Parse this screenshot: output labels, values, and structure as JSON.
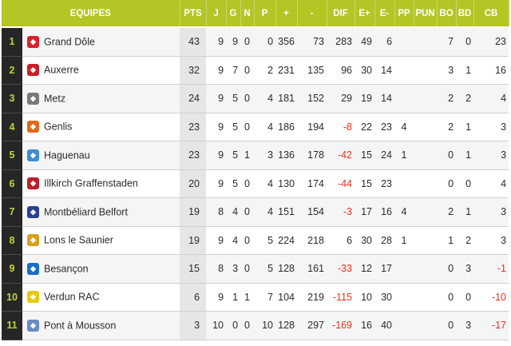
{
  "columns": {
    "equipes": "EQUIPES",
    "pts": "PTS",
    "j": "J",
    "g": "G",
    "n": "N",
    "p": "P",
    "plus": "+",
    "minus": "-",
    "dif": "DIF",
    "eplus": "E+",
    "eminus": "E-",
    "pp": "PP",
    "pun": "PUN",
    "bo": "BO",
    "bd": "BD",
    "cb": "CB"
  },
  "rows": [
    {
      "rank": "1",
      "team": "Grand Dôle",
      "logo_icon": "grand-dole-logo-icon",
      "logo_color": "#d8222a",
      "pts": "43",
      "j": "9",
      "g": "9",
      "n": "0",
      "p": "0",
      "plus": "356",
      "minus": "73",
      "dif": "283",
      "eplus": "49",
      "eminus": "6",
      "pp": "",
      "pun": "",
      "bo": "7",
      "bd": "0",
      "cb": "23"
    },
    {
      "rank": "2",
      "team": "Auxerre",
      "logo_icon": "auxerre-logo-icon",
      "logo_color": "#c8202a",
      "pts": "32",
      "j": "9",
      "g": "7",
      "n": "0",
      "p": "2",
      "plus": "231",
      "minus": "135",
      "dif": "96",
      "eplus": "30",
      "eminus": "14",
      "pp": "",
      "pun": "",
      "bo": "3",
      "bd": "1",
      "cb": "16"
    },
    {
      "rank": "3",
      "team": "Metz",
      "logo_icon": "metz-logo-icon",
      "logo_color": "#7a7a7a",
      "pts": "24",
      "j": "9",
      "g": "5",
      "n": "0",
      "p": "4",
      "plus": "181",
      "minus": "152",
      "dif": "29",
      "eplus": "19",
      "eminus": "14",
      "pp": "",
      "pun": "",
      "bo": "2",
      "bd": "2",
      "cb": "4"
    },
    {
      "rank": "4",
      "team": "Genlis",
      "logo_icon": "genlis-logo-icon",
      "logo_color": "#e06a1a",
      "pts": "23",
      "j": "9",
      "g": "5",
      "n": "0",
      "p": "4",
      "plus": "186",
      "minus": "194",
      "dif": "-8",
      "eplus": "22",
      "eminus": "23",
      "pp": "4",
      "pun": "",
      "bo": "2",
      "bd": "1",
      "cb": "3"
    },
    {
      "rank": "5",
      "team": "Haguenau",
      "logo_icon": "haguenau-logo-icon",
      "logo_color": "#3a8fd0",
      "pts": "23",
      "j": "9",
      "g": "5",
      "n": "1",
      "p": "3",
      "plus": "136",
      "minus": "178",
      "dif": "-42",
      "eplus": "15",
      "eminus": "24",
      "pp": "1",
      "pun": "",
      "bo": "0",
      "bd": "1",
      "cb": "3"
    },
    {
      "rank": "6",
      "team": "Illkirch Graffenstaden",
      "logo_icon": "illkirch-logo-icon",
      "logo_color": "#b8202a",
      "pts": "20",
      "j": "9",
      "g": "5",
      "n": "0",
      "p": "4",
      "plus": "130",
      "minus": "174",
      "dif": "-44",
      "eplus": "15",
      "eminus": "23",
      "pp": "",
      "pun": "",
      "bo": "0",
      "bd": "0",
      "cb": "4"
    },
    {
      "rank": "7",
      "team": "Montbéliard Belfort",
      "logo_icon": "montbeliard-logo-icon",
      "logo_color": "#2a3f8f",
      "pts": "19",
      "j": "8",
      "g": "4",
      "n": "0",
      "p": "4",
      "plus": "151",
      "minus": "154",
      "dif": "-3",
      "eplus": "17",
      "eminus": "16",
      "pp": "4",
      "pun": "",
      "bo": "2",
      "bd": "1",
      "cb": "3"
    },
    {
      "rank": "8",
      "team": "Lons le Saunier",
      "logo_icon": "lons-logo-icon",
      "logo_color": "#d8a020",
      "pts": "19",
      "j": "9",
      "g": "4",
      "n": "0",
      "p": "5",
      "plus": "224",
      "minus": "218",
      "dif": "6",
      "eplus": "30",
      "eminus": "28",
      "pp": "1",
      "pun": "",
      "bo": "1",
      "bd": "2",
      "cb": "3"
    },
    {
      "rank": "9",
      "team": "Besançon",
      "logo_icon": "besancon-logo-icon",
      "logo_color": "#1a6fc0",
      "pts": "15",
      "j": "8",
      "g": "3",
      "n": "0",
      "p": "5",
      "plus": "128",
      "minus": "161",
      "dif": "-33",
      "eplus": "12",
      "eminus": "17",
      "pp": "",
      "pun": "",
      "bo": "0",
      "bd": "3",
      "cb": "-1"
    },
    {
      "rank": "10",
      "team": "Verdun RAC",
      "logo_icon": "verdun-logo-icon",
      "logo_color": "#e8c810",
      "pts": "6",
      "j": "9",
      "g": "1",
      "n": "1",
      "p": "7",
      "plus": "104",
      "minus": "219",
      "dif": "-115",
      "eplus": "10",
      "eminus": "30",
      "pp": "",
      "pun": "",
      "bo": "0",
      "bd": "0",
      "cb": "-10"
    },
    {
      "rank": "11",
      "team": "Pont à Mousson",
      "logo_icon": "pont-a-mousson-logo-icon",
      "logo_color": "#6a8ac0",
      "pts": "3",
      "j": "10",
      "g": "0",
      "n": "0",
      "p": "10",
      "plus": "128",
      "minus": "297",
      "dif": "-169",
      "eplus": "16",
      "eminus": "40",
      "pp": "",
      "pun": "",
      "bo": "0",
      "bd": "3",
      "cb": "-17"
    }
  ],
  "colors": {
    "header_bg": "#b4c526",
    "rank_bg": "#262626",
    "rank_text": "#c3d22e",
    "negative": "#e8321e"
  }
}
